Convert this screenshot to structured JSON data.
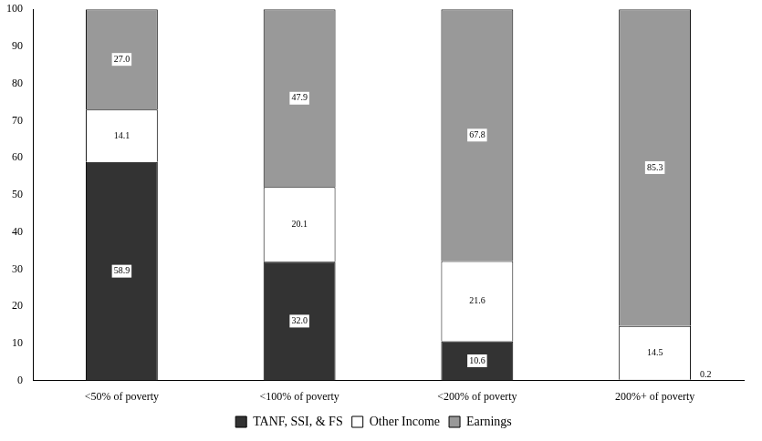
{
  "chart_data": {
    "type": "bar",
    "stacked": true,
    "data_labels": true,
    "grid": false,
    "legend": "bottom",
    "categories": [
      "<50% of poverty",
      "<100% of poverty",
      "<200% of poverty",
      "200%+ of poverty"
    ],
    "ylim": [
      0,
      100
    ],
    "yticks": [
      0,
      10,
      20,
      30,
      40,
      50,
      60,
      70,
      80,
      90,
      100
    ],
    "series": [
      {
        "name": "TANF, SSI, & FS",
        "color": "#333333",
        "values": [
          58.9,
          32.0,
          10.6,
          0.2
        ],
        "value_labels": [
          "58.9",
          "32.0",
          "10.6",
          "0.2"
        ]
      },
      {
        "name": "Other Income",
        "color": "#ffffff",
        "values": [
          14.1,
          20.1,
          21.6,
          14.5
        ],
        "value_labels": [
          "14.1",
          "20.1",
          "21.6",
          "14.5"
        ]
      },
      {
        "name": "Earnings",
        "color": "#999999",
        "values": [
          27.0,
          47.9,
          67.8,
          85.3
        ],
        "value_labels": [
          "27.0",
          "47.9",
          "67.8",
          "85.3"
        ]
      }
    ]
  }
}
